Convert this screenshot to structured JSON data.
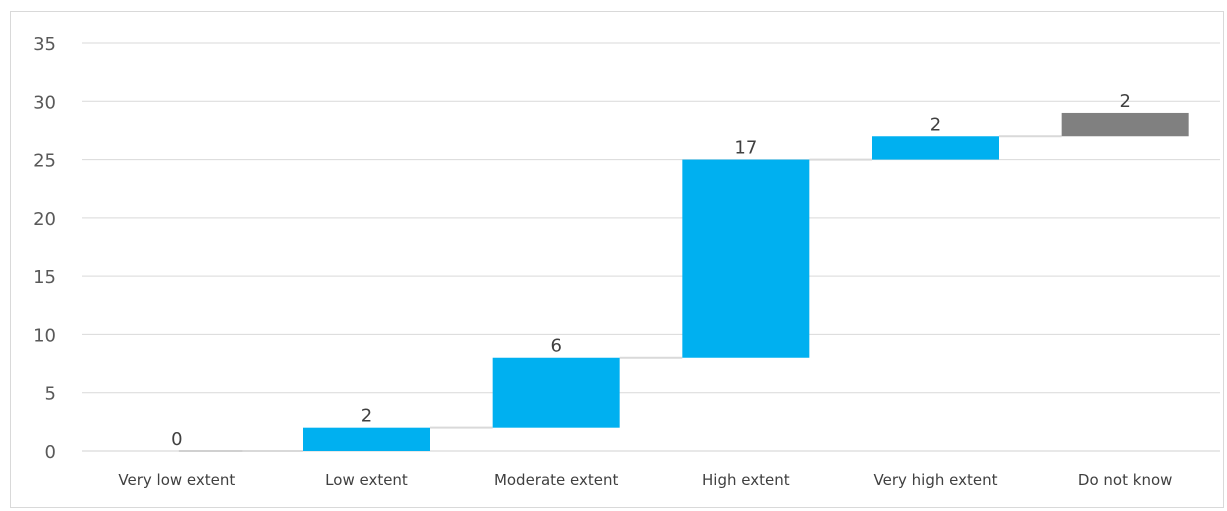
{
  "chart_data": {
    "type": "bar",
    "subtype": "waterfall",
    "title": "",
    "xlabel": "",
    "ylabel": "",
    "categories": [
      "Very low extent",
      "Low extent",
      "Moderate extent",
      "High extent",
      "Very high extent",
      "Do not know"
    ],
    "values": [
      0,
      2,
      6,
      17,
      2,
      2
    ],
    "base": [
      0,
      0,
      2,
      8,
      25,
      27
    ],
    "colors": [
      "#00b0f0",
      "#00b0f0",
      "#00b0f0",
      "#00b0f0",
      "#00b0f0",
      "#808080"
    ],
    "ylim": [
      0,
      35
    ],
    "yticks": [
      0,
      5,
      10,
      15,
      20,
      25,
      30,
      35
    ],
    "grid": true,
    "connector_lines": true,
    "legend": "none"
  }
}
